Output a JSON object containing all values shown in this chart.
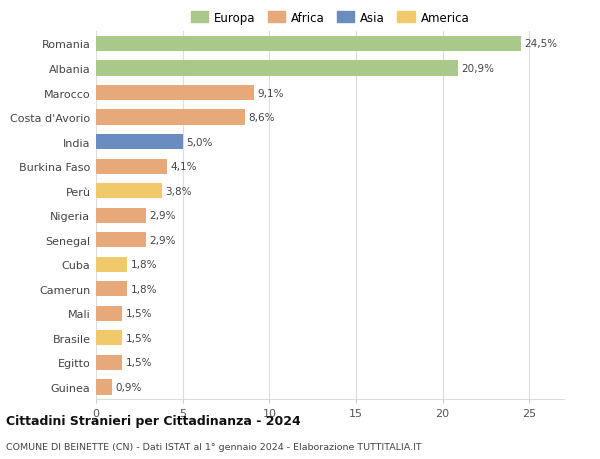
{
  "countries": [
    "Romania",
    "Albania",
    "Marocco",
    "Costa d'Avorio",
    "India",
    "Burkina Faso",
    "Perù",
    "Nigeria",
    "Senegal",
    "Cuba",
    "Camerun",
    "Mali",
    "Brasile",
    "Egitto",
    "Guinea"
  ],
  "values": [
    24.5,
    20.9,
    9.1,
    8.6,
    5.0,
    4.1,
    3.8,
    2.9,
    2.9,
    1.8,
    1.8,
    1.5,
    1.5,
    1.5,
    0.9
  ],
  "labels": [
    "24,5%",
    "20,9%",
    "9,1%",
    "8,6%",
    "5,0%",
    "4,1%",
    "3,8%",
    "2,9%",
    "2,9%",
    "1,8%",
    "1,8%",
    "1,5%",
    "1,5%",
    "1,5%",
    "0,9%"
  ],
  "continents": [
    "Europa",
    "Europa",
    "Africa",
    "Africa",
    "Asia",
    "Africa",
    "America",
    "Africa",
    "Africa",
    "America",
    "Africa",
    "Africa",
    "America",
    "Africa",
    "Africa"
  ],
  "colors": {
    "Europa": "#a8c98a",
    "Africa": "#e8a97a",
    "Asia": "#6a8cbf",
    "America": "#f0c96a"
  },
  "legend_order": [
    "Europa",
    "Africa",
    "Asia",
    "America"
  ],
  "title": "Cittadini Stranieri per Cittadinanza - 2024",
  "subtitle": "COMUNE DI BEINETTE (CN) - Dati ISTAT al 1° gennaio 2024 - Elaborazione TUTTITALIA.IT",
  "xlim": [
    0,
    27
  ],
  "xticks": [
    0,
    5,
    10,
    15,
    20,
    25
  ],
  "background_color": "#ffffff",
  "grid_color": "#dddddd"
}
